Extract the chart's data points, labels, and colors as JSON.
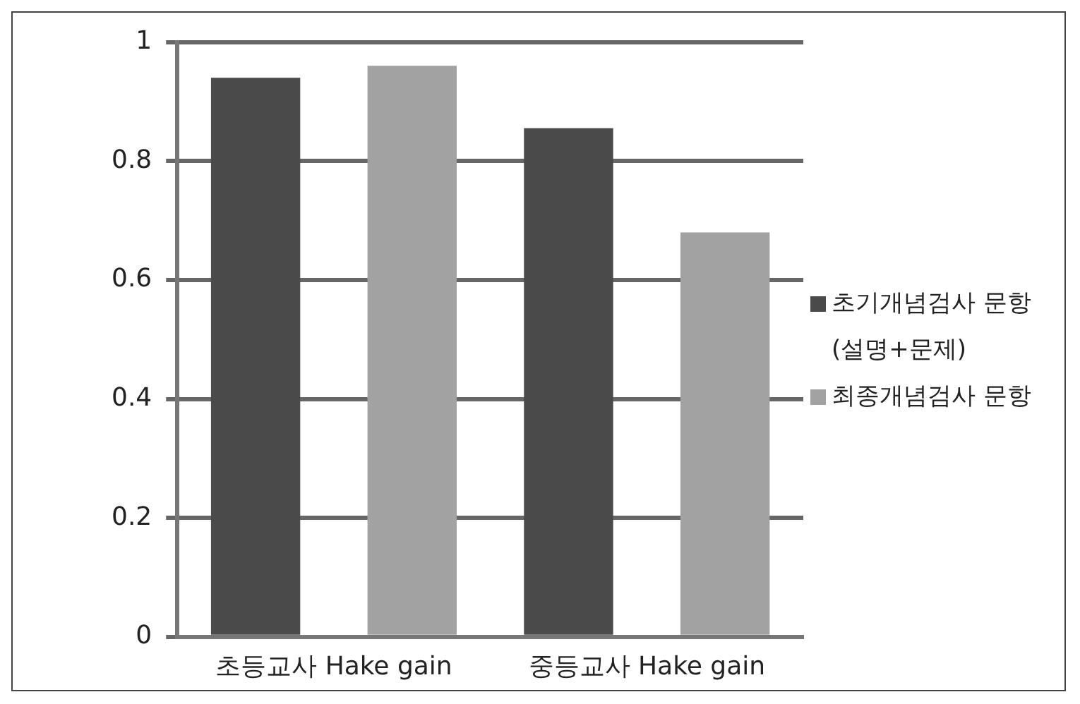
{
  "chart_data": {
    "type": "bar",
    "categories": [
      "초등교사 Hake gain",
      "중등교사 Hake gain"
    ],
    "series": [
      {
        "name": "초기개념검사 문항 (설명+문제)",
        "color": "#4a4a4a",
        "values": [
          0.94,
          0.855
        ]
      },
      {
        "name": "최종개념검사 문항",
        "color": "#a2a2a2",
        "values": [
          0.96,
          0.68
        ]
      }
    ],
    "ylim": [
      0,
      1
    ],
    "yticks": [
      0,
      0.2,
      0.4,
      0.6,
      0.8,
      1
    ],
    "grid": "y",
    "legend": "right"
  }
}
